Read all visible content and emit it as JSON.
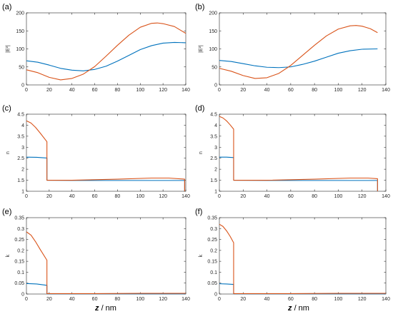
{
  "colors": {
    "series_blue": "#0072BD",
    "series_red": "#D95319",
    "axis": "#262626"
  },
  "chart_data": [
    {
      "panel_label": "(a)",
      "type": "line",
      "ylabel": "|E²|",
      "xlim": [
        0,
        140
      ],
      "ylim": [
        0,
        200
      ],
      "xticks": [
        0,
        20,
        40,
        60,
        80,
        100,
        120,
        140
      ],
      "yticks": [
        0,
        50,
        100,
        150,
        200
      ],
      "series": [
        {
          "color": "#0072BD",
          "x": [
            0,
            10,
            20,
            30,
            40,
            50,
            60,
            70,
            80,
            90,
            100,
            110,
            120,
            130,
            140
          ],
          "y": [
            67,
            63,
            55,
            46,
            41,
            39,
            43,
            52,
            66,
            82,
            98,
            109,
            116,
            118,
            117
          ]
        },
        {
          "color": "#D95319",
          "x": [
            0,
            10,
            20,
            30,
            40,
            50,
            60,
            70,
            80,
            90,
            100,
            110,
            115,
            120,
            130,
            140
          ],
          "y": [
            42,
            34,
            21,
            14,
            18,
            30,
            51,
            80,
            110,
            138,
            160,
            171,
            172,
            170,
            162,
            143
          ]
        }
      ]
    },
    {
      "panel_label": "(b)",
      "type": "line",
      "ylabel": "|E²|",
      "xlim": [
        0,
        140
      ],
      "ylim": [
        0,
        200
      ],
      "xticks": [
        0,
        20,
        40,
        60,
        80,
        100,
        120,
        140
      ],
      "yticks": [
        0,
        50,
        100,
        150,
        200
      ],
      "series": [
        {
          "color": "#0072BD",
          "x": [
            0,
            10,
            20,
            30,
            40,
            50,
            60,
            70,
            80,
            90,
            100,
            110,
            120,
            133
          ],
          "y": [
            68,
            65,
            59,
            53,
            49,
            48,
            50,
            57,
            66,
            77,
            88,
            95,
            99,
            100
          ]
        },
        {
          "color": "#D95319",
          "x": [
            0,
            10,
            20,
            30,
            40,
            50,
            60,
            70,
            80,
            90,
            100,
            110,
            115,
            120,
            127,
            133
          ],
          "y": [
            46,
            38,
            26,
            18,
            20,
            32,
            54,
            82,
            110,
            136,
            155,
            164,
            165,
            163,
            156,
            145
          ]
        }
      ]
    },
    {
      "panel_label": "(c)",
      "type": "line",
      "ylabel": "n",
      "xlim": [
        0,
        140
      ],
      "ylim": [
        1,
        4.5
      ],
      "xticks": [
        0,
        20,
        40,
        60,
        80,
        100,
        120,
        140
      ],
      "yticks": [
        1,
        1.5,
        2,
        2.5,
        3,
        3.5,
        4,
        4.5
      ],
      "series": [
        {
          "color": "#0072BD",
          "x": [
            0,
            9,
            18,
            18,
            40,
            80,
            120,
            139,
            139
          ],
          "y": [
            2.55,
            2.54,
            2.51,
            1.5,
            1.49,
            1.49,
            1.49,
            1.49,
            1.0
          ]
        },
        {
          "color": "#D95319",
          "x": [
            0,
            4,
            8,
            12,
            18,
            18,
            40,
            80,
            110,
            125,
            139,
            139
          ],
          "y": [
            4.2,
            4.1,
            3.9,
            3.65,
            3.25,
            1.5,
            1.5,
            1.55,
            1.6,
            1.6,
            1.55,
            1.0
          ]
        }
      ]
    },
    {
      "panel_label": "(d)",
      "type": "line",
      "ylabel": "n",
      "xlim": [
        0,
        140
      ],
      "ylim": [
        1,
        4.5
      ],
      "xticks": [
        0,
        20,
        40,
        60,
        80,
        100,
        120,
        140
      ],
      "yticks": [
        1,
        1.5,
        2,
        2.5,
        3,
        3.5,
        4,
        4.5
      ],
      "series": [
        {
          "color": "#0072BD",
          "x": [
            0,
            6,
            12,
            12,
            40,
            80,
            120,
            133,
            133
          ],
          "y": [
            2.55,
            2.55,
            2.53,
            1.5,
            1.49,
            1.49,
            1.49,
            1.49,
            1.0
          ]
        },
        {
          "color": "#D95319",
          "x": [
            0,
            3,
            6,
            9,
            12,
            12,
            40,
            80,
            110,
            125,
            133,
            133
          ],
          "y": [
            4.4,
            4.33,
            4.2,
            4.02,
            3.82,
            1.5,
            1.5,
            1.55,
            1.6,
            1.6,
            1.57,
            1.0
          ]
        }
      ]
    },
    {
      "panel_label": "(e)",
      "type": "line",
      "ylabel": "k",
      "xlim": [
        0,
        140
      ],
      "ylim": [
        0,
        0.35
      ],
      "xticks": [
        0,
        20,
        40,
        60,
        80,
        100,
        120,
        140
      ],
      "yticks": [
        0,
        0.05,
        0.1,
        0.15,
        0.2,
        0.25,
        0.3,
        0.35
      ],
      "series": [
        {
          "color": "#0072BD",
          "x": [
            0,
            9,
            18,
            18,
            140
          ],
          "y": [
            0.048,
            0.046,
            0.04,
            0.001,
            0.001
          ]
        },
        {
          "color": "#D95319",
          "x": [
            0,
            4,
            8,
            12,
            18,
            18,
            60,
            100,
            140
          ],
          "y": [
            0.285,
            0.27,
            0.24,
            0.205,
            0.155,
            0.002,
            0.002,
            0.003,
            0.003
          ]
        }
      ]
    },
    {
      "panel_label": "(f)",
      "type": "line",
      "ylabel": "k",
      "xlim": [
        0,
        140
      ],
      "ylim": [
        0,
        0.35
      ],
      "xticks": [
        0,
        20,
        40,
        60,
        80,
        100,
        120,
        140
      ],
      "yticks": [
        0,
        0.05,
        0.1,
        0.15,
        0.2,
        0.25,
        0.3,
        0.35
      ],
      "series": [
        {
          "color": "#0072BD",
          "x": [
            0,
            6,
            12,
            12,
            140
          ],
          "y": [
            0.047,
            0.046,
            0.044,
            0.001,
            0.001
          ]
        },
        {
          "color": "#D95319",
          "x": [
            0,
            3,
            6,
            9,
            12,
            12,
            60,
            100,
            140
          ],
          "y": [
            0.32,
            0.31,
            0.29,
            0.265,
            0.235,
            0.002,
            0.002,
            0.003,
            0.003
          ]
        }
      ]
    }
  ],
  "xaxis_label": {
    "symbol": "z",
    "unit": " / nm"
  }
}
